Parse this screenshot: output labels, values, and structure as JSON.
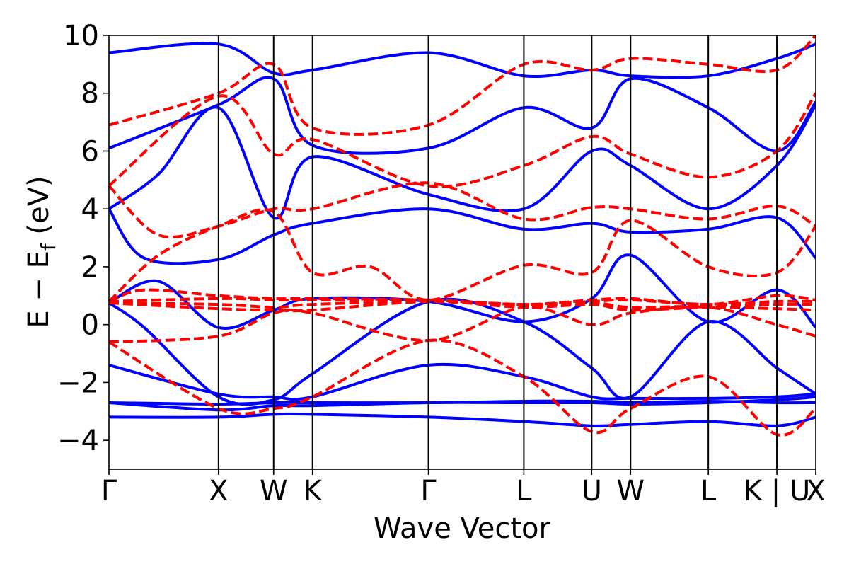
{
  "chart_data": {
    "type": "line",
    "title": "",
    "xlabel": "Wave Vector",
    "ylabel_parts": {
      "main": "E − E",
      "sub": "f",
      "unit": " (eV)"
    },
    "ylim": [
      -5,
      10
    ],
    "yticks": [
      -4,
      -2,
      0,
      2,
      4,
      6,
      8,
      10
    ],
    "ytick_labels": [
      "−4",
      "−2",
      "0",
      "2",
      "4",
      "6",
      "8",
      "10"
    ],
    "xlim": [
      0,
      1
    ],
    "kpoints": [
      {
        "label": "Γ",
        "x": 0.0
      },
      {
        "label": "X",
        "x": 0.155
      },
      {
        "label": "W",
        "x": 0.233
      },
      {
        "label": "K",
        "x": 0.288
      },
      {
        "label": "Γ",
        "x": 0.452
      },
      {
        "label": "L",
        "x": 0.587
      },
      {
        "label": "U",
        "x": 0.683
      },
      {
        "label": "W",
        "x": 0.738
      },
      {
        "label": "L",
        "x": 0.848
      },
      {
        "label": "K | U",
        "x": 0.945
      },
      {
        "label": "X",
        "x": 1.0
      }
    ],
    "grid": false,
    "legend": "none",
    "colors": {
      "series_a": "#0000ff",
      "series_b": "#ff0000",
      "vlines": "#000000"
    },
    "series": [
      {
        "style": "solid",
        "color": "#0000ff",
        "bands": [
          [
            [
              0,
              -3.2
            ],
            [
              0.155,
              -3.2
            ],
            [
              0.233,
              -3.1
            ],
            [
              0.288,
              -3.1
            ],
            [
              0.452,
              -3.2
            ],
            [
              0.587,
              -3.35
            ],
            [
              0.683,
              -3.5
            ],
            [
              0.738,
              -3.45
            ],
            [
              0.848,
              -3.35
            ],
            [
              0.945,
              -3.5
            ],
            [
              1.0,
              -3.2
            ]
          ],
          [
            [
              0,
              -2.7
            ],
            [
              0.155,
              -2.75
            ],
            [
              0.233,
              -2.7
            ],
            [
              0.288,
              -2.7
            ],
            [
              0.452,
              -2.7
            ],
            [
              0.587,
              -2.65
            ],
            [
              0.683,
              -2.65
            ],
            [
              0.738,
              -2.7
            ],
            [
              0.848,
              -2.65
            ],
            [
              0.945,
              -2.7
            ],
            [
              1.0,
              -2.7
            ]
          ],
          [
            [
              0,
              -2.7
            ],
            [
              0.155,
              -2.95
            ],
            [
              0.233,
              -2.8
            ],
            [
              0.288,
              -2.8
            ],
            [
              0.452,
              -2.7
            ],
            [
              0.587,
              -2.7
            ],
            [
              0.683,
              -2.7
            ],
            [
              0.738,
              -2.75
            ],
            [
              0.848,
              -2.7
            ],
            [
              0.945,
              -2.6
            ],
            [
              1.0,
              -2.5
            ]
          ],
          [
            [
              0,
              -1.4
            ],
            [
              0.155,
              -2.4
            ],
            [
              0.233,
              -2.5
            ],
            [
              0.288,
              -2.5
            ],
            [
              0.452,
              -1.4
            ],
            [
              0.587,
              -1.8
            ],
            [
              0.683,
              -2.5
            ],
            [
              0.738,
              -2.55
            ],
            [
              0.848,
              -2.55
            ],
            [
              0.945,
              -2.5
            ],
            [
              1.0,
              -2.4
            ]
          ],
          [
            [
              0,
              0.75
            ],
            [
              0.05,
              -0.1
            ],
            [
              0.155,
              -2.5
            ],
            [
              0.233,
              -2.6
            ],
            [
              0.288,
              -1.7
            ],
            [
              0.452,
              0.8
            ],
            [
              0.587,
              0.1
            ],
            [
              0.683,
              -1.5
            ],
            [
              0.738,
              -2.5
            ],
            [
              0.848,
              0.1
            ],
            [
              0.945,
              -1.5
            ],
            [
              1.0,
              -2.4
            ]
          ],
          [
            [
              0,
              0.75
            ],
            [
              0.07,
              1.5
            ],
            [
              0.155,
              -0.1
            ],
            [
              0.233,
              0.5
            ],
            [
              0.288,
              0.9
            ],
            [
              0.452,
              0.8
            ],
            [
              0.587,
              0.1
            ],
            [
              0.683,
              0.9
            ],
            [
              0.738,
              2.4
            ],
            [
              0.848,
              0.1
            ],
            [
              0.945,
              1.2
            ],
            [
              1.0,
              -0.1
            ]
          ],
          [
            [
              0,
              4.0
            ],
            [
              0.05,
              2.3
            ],
            [
              0.155,
              2.25
            ],
            [
              0.233,
              3.1
            ],
            [
              0.288,
              3.5
            ],
            [
              0.452,
              4.0
            ],
            [
              0.587,
              3.3
            ],
            [
              0.683,
              3.5
            ],
            [
              0.738,
              3.2
            ],
            [
              0.848,
              3.3
            ],
            [
              0.945,
              3.7
            ],
            [
              1.0,
              2.3
            ]
          ],
          [
            [
              0,
              4.0
            ],
            [
              0.07,
              5.2
            ],
            [
              0.155,
              7.5
            ],
            [
              0.233,
              3.7
            ],
            [
              0.288,
              5.8
            ],
            [
              0.452,
              4.5
            ],
            [
              0.587,
              4.0
            ],
            [
              0.683,
              6.0
            ],
            [
              0.738,
              5.5
            ],
            [
              0.848,
              4.0
            ],
            [
              0.945,
              5.5
            ],
            [
              1.0,
              7.6
            ]
          ],
          [
            [
              0,
              6.1
            ],
            [
              0.155,
              7.6
            ],
            [
              0.233,
              8.5
            ],
            [
              0.288,
              6.2
            ],
            [
              0.452,
              6.1
            ],
            [
              0.587,
              7.5
            ],
            [
              0.683,
              6.8
            ],
            [
              0.738,
              8.5
            ],
            [
              0.848,
              7.5
            ],
            [
              0.945,
              6.0
            ],
            [
              1.0,
              7.7
            ]
          ],
          [
            [
              0,
              9.4
            ],
            [
              0.155,
              9.7
            ],
            [
              0.233,
              8.7
            ],
            [
              0.288,
              8.8
            ],
            [
              0.452,
              9.4
            ],
            [
              0.587,
              8.6
            ],
            [
              0.683,
              8.8
            ],
            [
              0.738,
              8.6
            ],
            [
              0.848,
              8.6
            ],
            [
              0.945,
              9.2
            ],
            [
              1.0,
              9.7
            ]
          ]
        ]
      },
      {
        "style": "dashed",
        "color": "#ff0000",
        "bands": [
          [
            [
              0,
              -0.6
            ],
            [
              0.155,
              -2.9
            ],
            [
              0.233,
              -2.9
            ],
            [
              0.288,
              -2.5
            ],
            [
              0.452,
              -0.55
            ],
            [
              0.587,
              -1.8
            ],
            [
              0.683,
              -3.7
            ],
            [
              0.738,
              -2.9
            ],
            [
              0.848,
              -1.8
            ],
            [
              0.945,
              -3.8
            ],
            [
              1.0,
              -2.9
            ]
          ],
          [
            [
              0,
              -0.6
            ],
            [
              0.155,
              -0.4
            ],
            [
              0.233,
              0.4
            ],
            [
              0.288,
              0.4
            ],
            [
              0.452,
              -0.55
            ],
            [
              0.587,
              0.6
            ],
            [
              0.683,
              0.0
            ],
            [
              0.738,
              0.4
            ],
            [
              0.848,
              0.6
            ],
            [
              0.945,
              0.0
            ],
            [
              1.0,
              -0.4
            ]
          ],
          [
            [
              0,
              0.75
            ],
            [
              0.155,
              0.55
            ],
            [
              0.233,
              0.5
            ],
            [
              0.288,
              0.5
            ],
            [
              0.452,
              0.8
            ],
            [
              0.587,
              0.6
            ],
            [
              0.683,
              0.7
            ],
            [
              0.738,
              0.5
            ],
            [
              0.848,
              0.6
            ],
            [
              0.945,
              0.55
            ],
            [
              1.0,
              0.5
            ]
          ],
          [
            [
              0,
              0.75
            ],
            [
              0.155,
              0.7
            ],
            [
              0.233,
              0.6
            ],
            [
              0.288,
              0.7
            ],
            [
              0.452,
              0.8
            ],
            [
              0.587,
              0.65
            ],
            [
              0.683,
              0.75
            ],
            [
              0.738,
              0.6
            ],
            [
              0.848,
              0.65
            ],
            [
              0.945,
              0.7
            ],
            [
              1.0,
              0.7
            ]
          ],
          [
            [
              0,
              0.8
            ],
            [
              0.155,
              0.9
            ],
            [
              0.233,
              0.85
            ],
            [
              0.288,
              0.85
            ],
            [
              0.452,
              0.85
            ],
            [
              0.587,
              0.7
            ],
            [
              0.683,
              0.8
            ],
            [
              0.738,
              0.85
            ],
            [
              0.848,
              0.7
            ],
            [
              0.945,
              0.8
            ],
            [
              1.0,
              0.8
            ]
          ],
          [
            [
              0,
              0.8
            ],
            [
              0.05,
              1.2
            ],
            [
              0.155,
              1.0
            ],
            [
              0.233,
              0.9
            ],
            [
              0.288,
              0.9
            ],
            [
              0.452,
              0.85
            ],
            [
              0.587,
              0.7
            ],
            [
              0.683,
              0.85
            ],
            [
              0.738,
              0.9
            ],
            [
              0.848,
              0.7
            ],
            [
              0.945,
              1.0
            ],
            [
              1.0,
              0.85
            ]
          ],
          [
            [
              0,
              0.8
            ],
            [
              0.07,
              2.4
            ],
            [
              0.155,
              3.4
            ],
            [
              0.233,
              3.9
            ],
            [
              0.288,
              1.8
            ],
            [
              0.37,
              2.0
            ],
            [
              0.452,
              0.85
            ],
            [
              0.587,
              2.05
            ],
            [
              0.683,
              1.8
            ],
            [
              0.738,
              3.6
            ],
            [
              0.848,
              2.0
            ],
            [
              0.945,
              1.8
            ],
            [
              1.0,
              3.4
            ]
          ],
          [
            [
              0,
              4.8
            ],
            [
              0.07,
              3.1
            ],
            [
              0.155,
              3.4
            ],
            [
              0.233,
              4.0
            ],
            [
              0.288,
              4.0
            ],
            [
              0.452,
              4.9
            ],
            [
              0.587,
              3.65
            ],
            [
              0.683,
              4.05
            ],
            [
              0.738,
              4.0
            ],
            [
              0.848,
              3.65
            ],
            [
              0.945,
              4.1
            ],
            [
              1.0,
              3.4
            ]
          ],
          [
            [
              0,
              4.8
            ],
            [
              0.155,
              7.9
            ],
            [
              0.233,
              5.9
            ],
            [
              0.288,
              6.4
            ],
            [
              0.452,
              4.8
            ],
            [
              0.587,
              5.5
            ],
            [
              0.683,
              6.5
            ],
            [
              0.738,
              5.9
            ],
            [
              0.848,
              5.1
            ],
            [
              0.945,
              6.0
            ],
            [
              1.0,
              8.0
            ]
          ],
          [
            [
              0,
              6.9
            ],
            [
              0.155,
              8.0
            ],
            [
              0.233,
              9.0
            ],
            [
              0.288,
              6.8
            ],
            [
              0.452,
              6.9
            ],
            [
              0.587,
              9.0
            ],
            [
              0.683,
              8.8
            ],
            [
              0.738,
              9.2
            ],
            [
              0.848,
              9.0
            ],
            [
              0.945,
              8.8
            ],
            [
              1.0,
              10.0
            ]
          ]
        ]
      }
    ]
  }
}
